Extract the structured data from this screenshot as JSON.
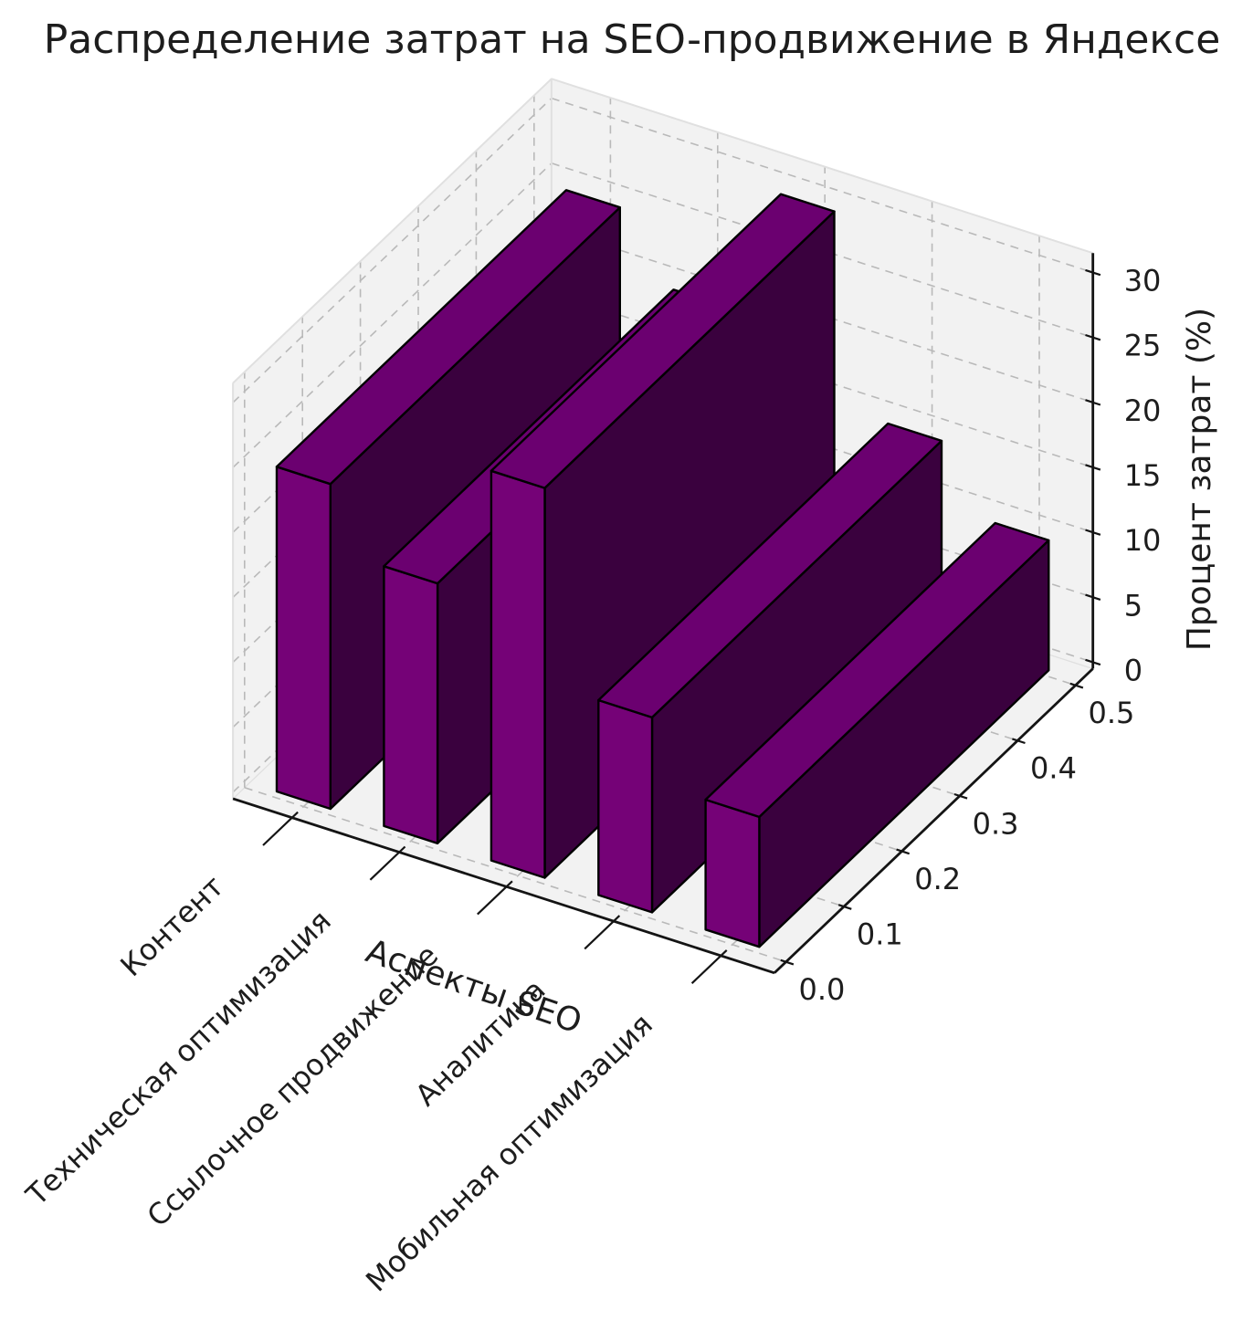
{
  "title": "Распределение затрат на SEO-продвижение в Яндексе",
  "chart_data": {
    "type": "bar",
    "projection": "3d",
    "categories": [
      "Контент",
      "Техническая оптимизация",
      "Ссылочное продвижение",
      "Аналитика",
      "Мобильная оптимизация"
    ],
    "values": [
      25,
      20,
      30,
      15,
      10
    ],
    "xlabel": "Аспекты SEO",
    "ylabel": "",
    "zlabel": "Процент затрат (%)",
    "y_ticks": [
      "0.0",
      "0.1",
      "0.2",
      "0.3",
      "0.4",
      "0.5"
    ],
    "z_ticks": [
      0,
      5,
      10,
      15,
      20,
      25,
      30
    ],
    "ylim": [
      0.0,
      0.5
    ],
    "zlim": [
      0,
      30
    ],
    "grid": true,
    "legend": "none",
    "colors": {
      "bar_front": "#750277",
      "bar_side": "#3A013E",
      "bar_top": "#6B0070",
      "bar_edge": "#000000",
      "pane": "#F2F2F2",
      "pane_edge": "#E0E0E0",
      "grid": "#B9B9B9",
      "spine": "#141414",
      "text": "#1D1D1D",
      "background": "#FFFFFF"
    }
  }
}
